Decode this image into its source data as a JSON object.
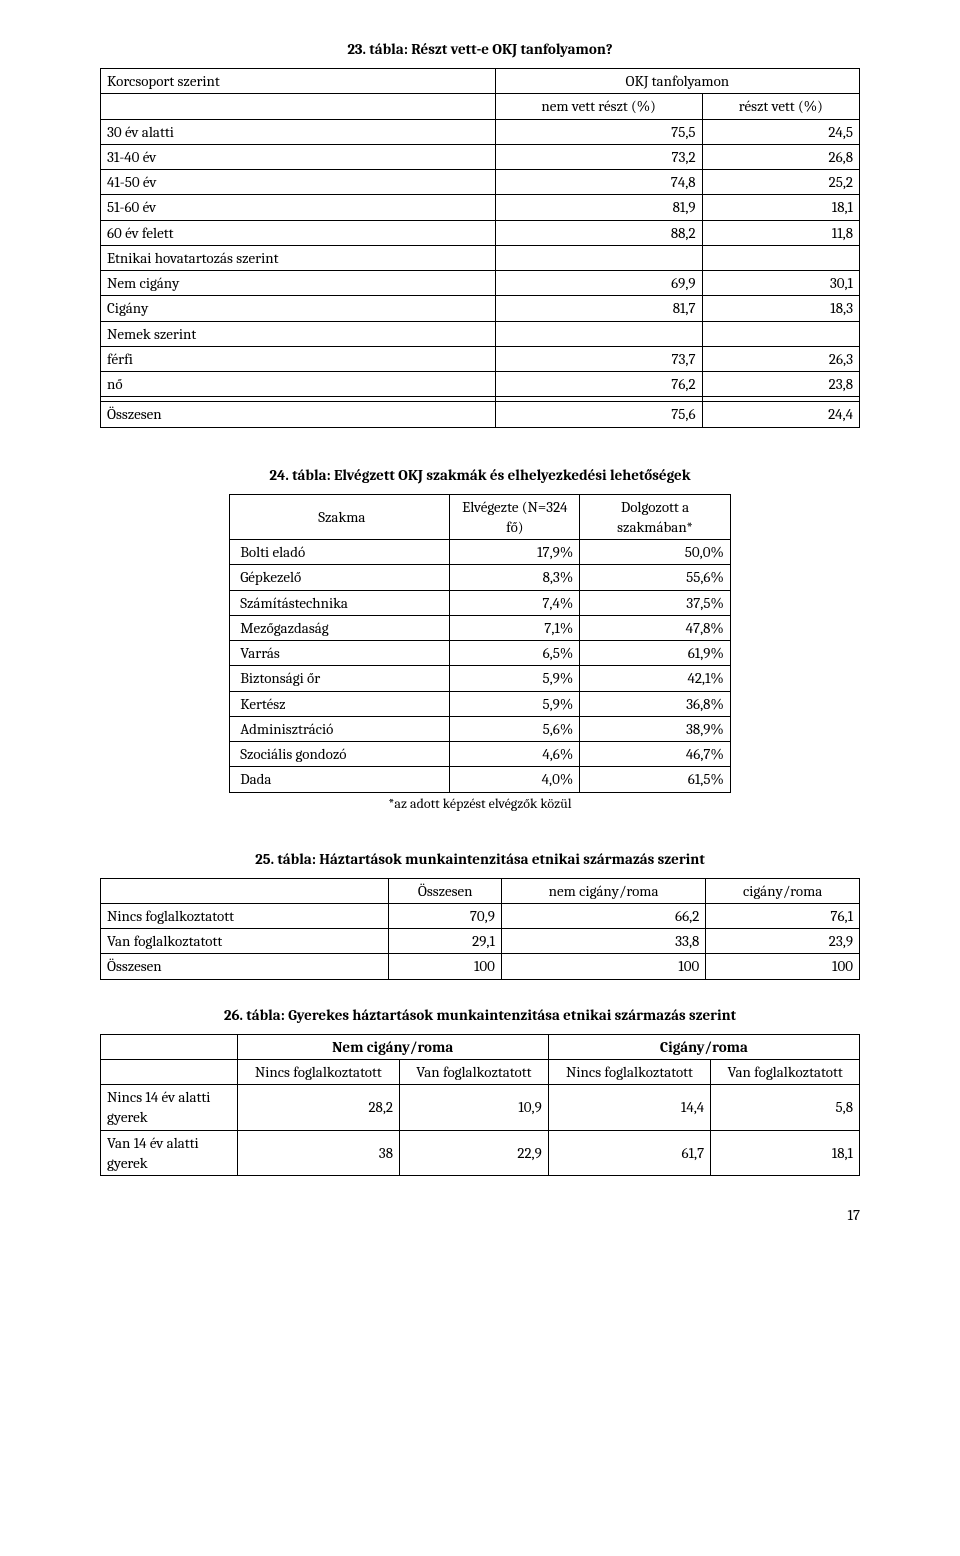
{
  "t23": {
    "title": "23. tábla: Részt vett-e OKJ tanfolyamon?",
    "h_group": "Korcsoport szerint",
    "h_okj": "OKJ tanfolyamon",
    "h_nem": "nem vett részt (%)",
    "h_reszt": "részt vett (%)",
    "rows": [
      {
        "label": "30 év alatti",
        "a": "75,5",
        "b": "24,5"
      },
      {
        "label": "31-40 év",
        "a": "73,2",
        "b": "26,8"
      },
      {
        "label": "41-50 év",
        "a": "74,8",
        "b": "25,2"
      },
      {
        "label": "51-60 év",
        "a": "81,9",
        "b": "18,1"
      },
      {
        "label": "60 év felett",
        "a": "88,2",
        "b": "11,8"
      }
    ],
    "h_etnikai": "Etnikai hovatartozás szerint",
    "rows2": [
      {
        "label": "Nem cigány",
        "a": "69,9",
        "b": "30,1"
      },
      {
        "label": "Cigány",
        "a": "81,7",
        "b": "18,3"
      }
    ],
    "h_nemek": "Nemek szerint",
    "rows3": [
      {
        "label": "férfi",
        "a": "73,7",
        "b": "26,3"
      },
      {
        "label": "nő",
        "a": "76,2",
        "b": "23,8"
      }
    ],
    "total": {
      "label": "Összesen",
      "a": "75,6",
      "b": "24,4"
    }
  },
  "t24": {
    "title": "24. tábla: Elvégzett OKJ szakmák és elhelyezkedési lehetőségek",
    "h_szakma": "Szakma",
    "h_elv": "Elvégezte (N=324 fő)",
    "h_dolg": "Dolgozott a szakmában*",
    "rows": [
      {
        "label": "Bolti eladó",
        "a": "17,9%",
        "b": "50,0%"
      },
      {
        "label": "Gépkezelő",
        "a": "8,3%",
        "b": "55,6%"
      },
      {
        "label": "Számítástechnika",
        "a": "7,4%",
        "b": "37,5%"
      },
      {
        "label": "Mezőgazdaság",
        "a": "7,1%",
        "b": "47,8%"
      },
      {
        "label": "Varrás",
        "a": "6,5%",
        "b": "61,9%"
      },
      {
        "label": "Biztonsági őr",
        "a": "5,9%",
        "b": "42,1%"
      },
      {
        "label": "Kertész",
        "a": "5,9%",
        "b": "36,8%"
      },
      {
        "label": "Adminisztráció",
        "a": "5,6%",
        "b": "38,9%"
      },
      {
        "label": "Szociális gondozó",
        "a": "4,6%",
        "b": "46,7%"
      },
      {
        "label": "Dada",
        "a": "4,0%",
        "b": "61,5%"
      }
    ],
    "note": "*az adott képzést elvégzők közül"
  },
  "t25": {
    "title": "25. tábla: Háztartások munkaintenzitása etnikai származás szerint",
    "h_ossz": "Összesen",
    "h_nem": "nem cigány/roma",
    "h_cig": "cigány/roma",
    "rows": [
      {
        "label": "Nincs foglalkoztatott",
        "a": "70,9",
        "b": "66,2",
        "c": "76,1"
      },
      {
        "label": "Van foglalkoztatott",
        "a": "29,1",
        "b": "33,8",
        "c": "23,9"
      },
      {
        "label": "Összesen",
        "a": "100",
        "b": "100",
        "c": "100"
      }
    ]
  },
  "t26": {
    "title": "26. tábla: Gyerekes háztartások munkaintenzitása etnikai származás szerint",
    "h_nemcig": "Nem cigány/roma",
    "h_cig": "Cigány/roma",
    "h_nincs": "Nincs foglalkoztatott",
    "h_van": "Van foglalkoztatott",
    "rows": [
      {
        "label": "Nincs 14 év alatti gyerek",
        "a": "28,2",
        "b": "10,9",
        "c": "14,4",
        "d": "5,8"
      },
      {
        "label": "Van 14 év alatti gyerek",
        "a": "38",
        "b": "22,9",
        "c": "61,7",
        "d": "18,1"
      }
    ]
  },
  "pagenum": "17"
}
